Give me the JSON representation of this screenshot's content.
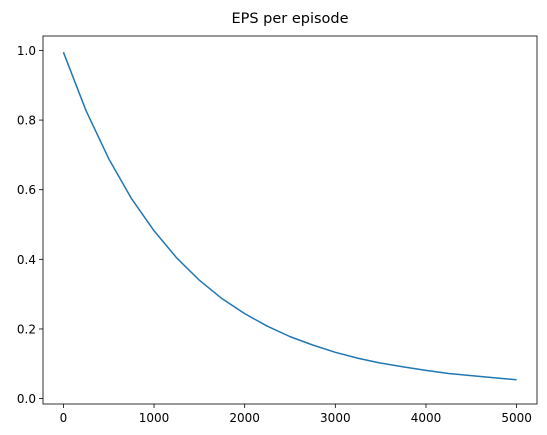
{
  "chart_data": {
    "type": "line",
    "title": "EPS per episode",
    "xlabel": "",
    "ylabel": "",
    "xlim": [
      -225,
      5225
    ],
    "ylim": [
      -0.0155,
      1.0415
    ],
    "xticks": [
      0,
      1000,
      2000,
      3000,
      4000,
      5000
    ],
    "xtick_labels": [
      "0",
      "1000",
      "2000",
      "3000",
      "4000",
      "5000"
    ],
    "yticks": [
      0.0,
      0.2,
      0.4,
      0.6,
      0.8,
      1.0
    ],
    "ytick_labels": [
      "0.0",
      "0.2",
      "0.4",
      "0.6",
      "0.8",
      "1.0"
    ],
    "grid": false,
    "legend": "none",
    "series": [
      {
        "color": "#1f77b4",
        "x": [
          0,
          250,
          500,
          750,
          1000,
          1250,
          1500,
          1750,
          2000,
          2250,
          2500,
          2750,
          3000,
          3250,
          3500,
          3750,
          4000,
          4250,
          4500,
          4750,
          5000
        ],
        "y": [
          0.995,
          0.827,
          0.689,
          0.575,
          0.482,
          0.404,
          0.34,
          0.287,
          0.244,
          0.208,
          0.178,
          0.154,
          0.133,
          0.116,
          0.102,
          0.091,
          0.081,
          0.072,
          0.066,
          0.06,
          0.054
        ]
      }
    ]
  }
}
